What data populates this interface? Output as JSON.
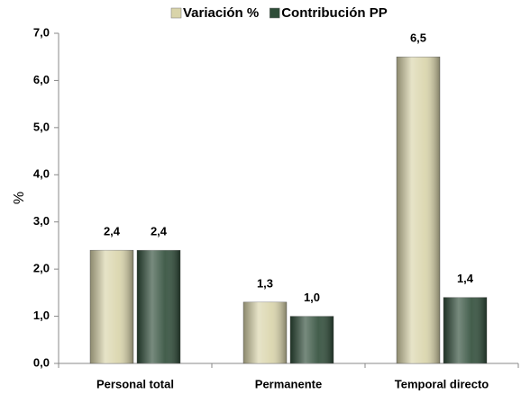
{
  "chart_data": {
    "type": "bar",
    "y_label": "%",
    "categories": [
      "Personal total",
      "Permanente",
      "Temporal directo"
    ],
    "series": [
      {
        "name": "Variación %",
        "color": "#d9d4aa",
        "values": [
          2.4,
          1.3,
          6.5
        ],
        "value_labels": [
          "2,4",
          "1,3",
          "6,5"
        ]
      },
      {
        "name": "Contribución PP",
        "color": "#2e4c38",
        "values": [
          2.4,
          1.0,
          1.4
        ],
        "value_labels": [
          "2,4",
          "1,0",
          "1,4"
        ]
      }
    ],
    "ylim": [
      0,
      7
    ],
    "yticks": [
      {
        "value": 0,
        "label": "0,0"
      },
      {
        "value": 1,
        "label": "1,0"
      },
      {
        "value": 2,
        "label": "2,0"
      },
      {
        "value": 3,
        "label": "3,0"
      },
      {
        "value": 4,
        "label": "4,0"
      },
      {
        "value": 5,
        "label": "5,0"
      },
      {
        "value": 6,
        "label": "6,0"
      },
      {
        "value": 7,
        "label": "7,0"
      }
    ],
    "legend": "top"
  }
}
